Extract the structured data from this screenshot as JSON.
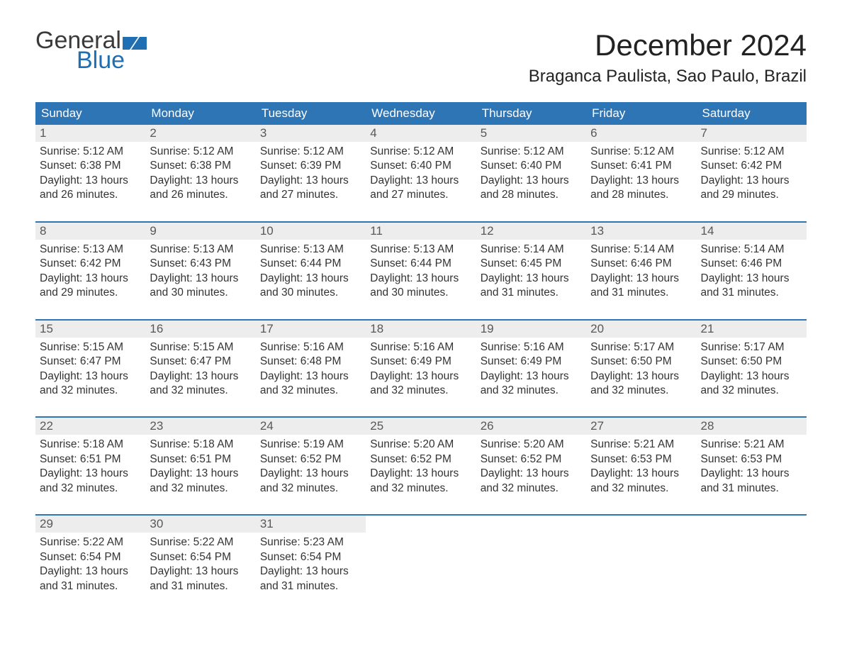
{
  "logo": {
    "text_general": "General",
    "text_blue": "Blue",
    "icon_color": "#1f6fb2"
  },
  "header": {
    "month_title": "December 2024",
    "location": "Braganca Paulista, Sao Paulo, Brazil"
  },
  "styling": {
    "header_bg": "#2e75b6",
    "header_fg": "#ffffff",
    "daynum_bg": "#ededed",
    "daynum_fg": "#585858",
    "body_fg": "#333333",
    "accent_border": "#2e75b6",
    "page_bg": "#ffffff",
    "month_title_fontsize": 42,
    "location_fontsize": 24,
    "dayheader_fontsize": 17,
    "cell_fontsize": 15.5
  },
  "day_headers": [
    "Sunday",
    "Monday",
    "Tuesday",
    "Wednesday",
    "Thursday",
    "Friday",
    "Saturday"
  ],
  "weeks": [
    [
      {
        "n": "1",
        "sunrise": "Sunrise: 5:12 AM",
        "sunset": "Sunset: 6:38 PM",
        "d1": "Daylight: 13 hours",
        "d2": "and 26 minutes."
      },
      {
        "n": "2",
        "sunrise": "Sunrise: 5:12 AM",
        "sunset": "Sunset: 6:38 PM",
        "d1": "Daylight: 13 hours",
        "d2": "and 26 minutes."
      },
      {
        "n": "3",
        "sunrise": "Sunrise: 5:12 AM",
        "sunset": "Sunset: 6:39 PM",
        "d1": "Daylight: 13 hours",
        "d2": "and 27 minutes."
      },
      {
        "n": "4",
        "sunrise": "Sunrise: 5:12 AM",
        "sunset": "Sunset: 6:40 PM",
        "d1": "Daylight: 13 hours",
        "d2": "and 27 minutes."
      },
      {
        "n": "5",
        "sunrise": "Sunrise: 5:12 AM",
        "sunset": "Sunset: 6:40 PM",
        "d1": "Daylight: 13 hours",
        "d2": "and 28 minutes."
      },
      {
        "n": "6",
        "sunrise": "Sunrise: 5:12 AM",
        "sunset": "Sunset: 6:41 PM",
        "d1": "Daylight: 13 hours",
        "d2": "and 28 minutes."
      },
      {
        "n": "7",
        "sunrise": "Sunrise: 5:12 AM",
        "sunset": "Sunset: 6:42 PM",
        "d1": "Daylight: 13 hours",
        "d2": "and 29 minutes."
      }
    ],
    [
      {
        "n": "8",
        "sunrise": "Sunrise: 5:13 AM",
        "sunset": "Sunset: 6:42 PM",
        "d1": "Daylight: 13 hours",
        "d2": "and 29 minutes."
      },
      {
        "n": "9",
        "sunrise": "Sunrise: 5:13 AM",
        "sunset": "Sunset: 6:43 PM",
        "d1": "Daylight: 13 hours",
        "d2": "and 30 minutes."
      },
      {
        "n": "10",
        "sunrise": "Sunrise: 5:13 AM",
        "sunset": "Sunset: 6:44 PM",
        "d1": "Daylight: 13 hours",
        "d2": "and 30 minutes."
      },
      {
        "n": "11",
        "sunrise": "Sunrise: 5:13 AM",
        "sunset": "Sunset: 6:44 PM",
        "d1": "Daylight: 13 hours",
        "d2": "and 30 minutes."
      },
      {
        "n": "12",
        "sunrise": "Sunrise: 5:14 AM",
        "sunset": "Sunset: 6:45 PM",
        "d1": "Daylight: 13 hours",
        "d2": "and 31 minutes."
      },
      {
        "n": "13",
        "sunrise": "Sunrise: 5:14 AM",
        "sunset": "Sunset: 6:46 PM",
        "d1": "Daylight: 13 hours",
        "d2": "and 31 minutes."
      },
      {
        "n": "14",
        "sunrise": "Sunrise: 5:14 AM",
        "sunset": "Sunset: 6:46 PM",
        "d1": "Daylight: 13 hours",
        "d2": "and 31 minutes."
      }
    ],
    [
      {
        "n": "15",
        "sunrise": "Sunrise: 5:15 AM",
        "sunset": "Sunset: 6:47 PM",
        "d1": "Daylight: 13 hours",
        "d2": "and 32 minutes."
      },
      {
        "n": "16",
        "sunrise": "Sunrise: 5:15 AM",
        "sunset": "Sunset: 6:47 PM",
        "d1": "Daylight: 13 hours",
        "d2": "and 32 minutes."
      },
      {
        "n": "17",
        "sunrise": "Sunrise: 5:16 AM",
        "sunset": "Sunset: 6:48 PM",
        "d1": "Daylight: 13 hours",
        "d2": "and 32 minutes."
      },
      {
        "n": "18",
        "sunrise": "Sunrise: 5:16 AM",
        "sunset": "Sunset: 6:49 PM",
        "d1": "Daylight: 13 hours",
        "d2": "and 32 minutes."
      },
      {
        "n": "19",
        "sunrise": "Sunrise: 5:16 AM",
        "sunset": "Sunset: 6:49 PM",
        "d1": "Daylight: 13 hours",
        "d2": "and 32 minutes."
      },
      {
        "n": "20",
        "sunrise": "Sunrise: 5:17 AM",
        "sunset": "Sunset: 6:50 PM",
        "d1": "Daylight: 13 hours",
        "d2": "and 32 minutes."
      },
      {
        "n": "21",
        "sunrise": "Sunrise: 5:17 AM",
        "sunset": "Sunset: 6:50 PM",
        "d1": "Daylight: 13 hours",
        "d2": "and 32 minutes."
      }
    ],
    [
      {
        "n": "22",
        "sunrise": "Sunrise: 5:18 AM",
        "sunset": "Sunset: 6:51 PM",
        "d1": "Daylight: 13 hours",
        "d2": "and 32 minutes."
      },
      {
        "n": "23",
        "sunrise": "Sunrise: 5:18 AM",
        "sunset": "Sunset: 6:51 PM",
        "d1": "Daylight: 13 hours",
        "d2": "and 32 minutes."
      },
      {
        "n": "24",
        "sunrise": "Sunrise: 5:19 AM",
        "sunset": "Sunset: 6:52 PM",
        "d1": "Daylight: 13 hours",
        "d2": "and 32 minutes."
      },
      {
        "n": "25",
        "sunrise": "Sunrise: 5:20 AM",
        "sunset": "Sunset: 6:52 PM",
        "d1": "Daylight: 13 hours",
        "d2": "and 32 minutes."
      },
      {
        "n": "26",
        "sunrise": "Sunrise: 5:20 AM",
        "sunset": "Sunset: 6:52 PM",
        "d1": "Daylight: 13 hours",
        "d2": "and 32 minutes."
      },
      {
        "n": "27",
        "sunrise": "Sunrise: 5:21 AM",
        "sunset": "Sunset: 6:53 PM",
        "d1": "Daylight: 13 hours",
        "d2": "and 32 minutes."
      },
      {
        "n": "28",
        "sunrise": "Sunrise: 5:21 AM",
        "sunset": "Sunset: 6:53 PM",
        "d1": "Daylight: 13 hours",
        "d2": "and 31 minutes."
      }
    ],
    [
      {
        "n": "29",
        "sunrise": "Sunrise: 5:22 AM",
        "sunset": "Sunset: 6:54 PM",
        "d1": "Daylight: 13 hours",
        "d2": "and 31 minutes."
      },
      {
        "n": "30",
        "sunrise": "Sunrise: 5:22 AM",
        "sunset": "Sunset: 6:54 PM",
        "d1": "Daylight: 13 hours",
        "d2": "and 31 minutes."
      },
      {
        "n": "31",
        "sunrise": "Sunrise: 5:23 AM",
        "sunset": "Sunset: 6:54 PM",
        "d1": "Daylight: 13 hours",
        "d2": "and 31 minutes."
      },
      null,
      null,
      null,
      null
    ]
  ]
}
